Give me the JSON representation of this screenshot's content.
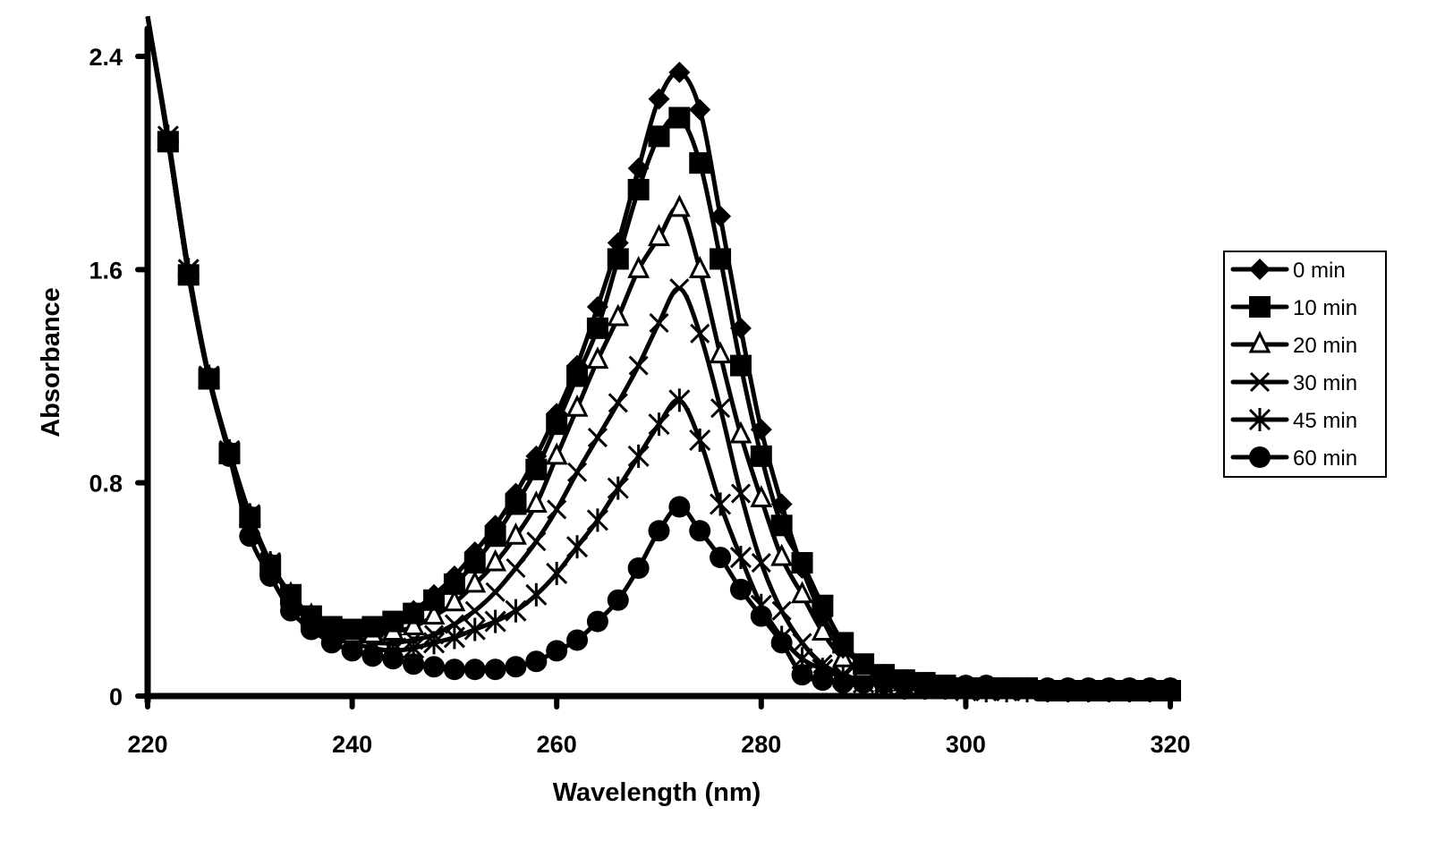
{
  "chart_data": {
    "type": "line",
    "title": "",
    "xlabel": "Wavelength (nm)",
    "ylabel": "Absorbance",
    "xlim": [
      220,
      320
    ],
    "ylim": [
      0,
      2.4
    ],
    "xticks": [
      220,
      240,
      260,
      280,
      300,
      320
    ],
    "yticks": [
      0,
      0.8,
      1.6,
      2.4
    ],
    "xtick_labels": [
      "220",
      "240",
      "260",
      "280",
      "300",
      "320"
    ],
    "ytick_labels": [
      "0",
      "0.8",
      "1.6",
      "2.4"
    ],
    "grid": false,
    "legend_position": "right",
    "x": [
      220,
      222,
      224,
      226,
      228,
      230,
      232,
      234,
      236,
      238,
      240,
      242,
      244,
      246,
      248,
      250,
      252,
      254,
      256,
      258,
      260,
      262,
      264,
      266,
      268,
      270,
      272,
      274,
      276,
      278,
      280,
      282,
      284,
      286,
      288,
      290,
      292,
      294,
      296,
      298,
      300,
      302,
      304,
      306,
      308,
      310,
      312,
      314,
      316,
      318,
      320
    ],
    "series": [
      {
        "name": "0 min",
        "marker": "diamond",
        "values": [
          2.55,
          2.08,
          1.58,
          1.2,
          0.92,
          0.68,
          0.5,
          0.38,
          0.3,
          0.26,
          0.25,
          0.26,
          0.28,
          0.32,
          0.38,
          0.45,
          0.54,
          0.64,
          0.76,
          0.9,
          1.06,
          1.24,
          1.46,
          1.7,
          1.98,
          2.24,
          2.34,
          2.2,
          1.8,
          1.38,
          1.0,
          0.72,
          0.48,
          0.3,
          0.18,
          0.12,
          0.08,
          0.06,
          0.05,
          0.04,
          0.04,
          0.03,
          0.03,
          0.03,
          0.03,
          0.02,
          0.02,
          0.02,
          0.02,
          0.02,
          0.02
        ]
      },
      {
        "name": "10 min",
        "marker": "square",
        "values": [
          2.55,
          2.08,
          1.58,
          1.19,
          0.91,
          0.67,
          0.49,
          0.38,
          0.3,
          0.26,
          0.25,
          0.26,
          0.28,
          0.31,
          0.36,
          0.42,
          0.5,
          0.6,
          0.72,
          0.85,
          1.02,
          1.2,
          1.38,
          1.64,
          1.9,
          2.1,
          2.17,
          2.0,
          1.64,
          1.24,
          0.9,
          0.64,
          0.5,
          0.34,
          0.2,
          0.12,
          0.08,
          0.06,
          0.05,
          0.04,
          0.03,
          0.03,
          0.03,
          0.03,
          0.02,
          0.02,
          0.02,
          0.02,
          0.02,
          0.02,
          0.02
        ]
      },
      {
        "name": "20 min",
        "marker": "triangle-open",
        "values": [
          2.55,
          2.08,
          1.58,
          1.19,
          0.91,
          0.67,
          0.49,
          0.38,
          0.3,
          0.25,
          0.23,
          0.23,
          0.24,
          0.26,
          0.3,
          0.35,
          0.42,
          0.5,
          0.6,
          0.72,
          0.9,
          1.08,
          1.26,
          1.42,
          1.6,
          1.72,
          1.83,
          1.6,
          1.28,
          0.98,
          0.74,
          0.52,
          0.38,
          0.24,
          0.14,
          0.1,
          0.07,
          0.05,
          0.04,
          0.03,
          0.03,
          0.03,
          0.02,
          0.02,
          0.02,
          0.02,
          0.02,
          0.02,
          0.02,
          0.02,
          0.02
        ]
      },
      {
        "name": "30 min",
        "marker": "x",
        "values": [
          2.55,
          2.1,
          1.6,
          1.2,
          0.92,
          0.68,
          0.5,
          0.38,
          0.29,
          0.24,
          0.22,
          0.2,
          0.2,
          0.21,
          0.23,
          0.27,
          0.32,
          0.39,
          0.48,
          0.58,
          0.7,
          0.84,
          0.97,
          1.1,
          1.24,
          1.4,
          1.53,
          1.36,
          1.08,
          0.76,
          0.5,
          0.32,
          0.2,
          0.12,
          0.08,
          0.06,
          0.05,
          0.04,
          0.03,
          0.03,
          0.03,
          0.02,
          0.02,
          0.02,
          0.02,
          0.02,
          0.02,
          0.02,
          0.02,
          0.02,
          0.02
        ]
      },
      {
        "name": "45 min",
        "marker": "star",
        "values": [
          2.55,
          2.1,
          1.6,
          1.2,
          0.92,
          0.68,
          0.5,
          0.37,
          0.28,
          0.23,
          0.2,
          0.18,
          0.17,
          0.18,
          0.2,
          0.22,
          0.25,
          0.28,
          0.32,
          0.38,
          0.46,
          0.56,
          0.66,
          0.78,
          0.9,
          1.02,
          1.11,
          0.96,
          0.72,
          0.52,
          0.34,
          0.22,
          0.14,
          0.1,
          0.07,
          0.05,
          0.04,
          0.03,
          0.03,
          0.03,
          0.02,
          0.02,
          0.02,
          0.02,
          0.02,
          0.02,
          0.02,
          0.02,
          0.02,
          0.02,
          0.02
        ]
      },
      {
        "name": "60 min",
        "marker": "circle",
        "values": [
          2.55,
          2.08,
          1.58,
          1.19,
          0.9,
          0.6,
          0.45,
          0.32,
          0.25,
          0.2,
          0.17,
          0.15,
          0.14,
          0.12,
          0.11,
          0.1,
          0.1,
          0.1,
          0.11,
          0.13,
          0.17,
          0.21,
          0.28,
          0.36,
          0.48,
          0.62,
          0.71,
          0.62,
          0.52,
          0.4,
          0.3,
          0.2,
          0.08,
          0.06,
          0.05,
          0.05,
          0.05,
          0.05,
          0.04,
          0.04,
          0.04,
          0.04,
          0.03,
          0.03,
          0.03,
          0.03,
          0.03,
          0.03,
          0.03,
          0.03,
          0.03
        ]
      }
    ]
  },
  "legend": {
    "items": [
      "0 min",
      "10 min",
      "20 min",
      "30 min",
      "45 min",
      "60 min"
    ]
  },
  "axes": {
    "x_title": "Wavelength (nm)",
    "y_title": "Absorbance"
  },
  "colors": {
    "line": "#000000",
    "background": "#ffffff"
  }
}
